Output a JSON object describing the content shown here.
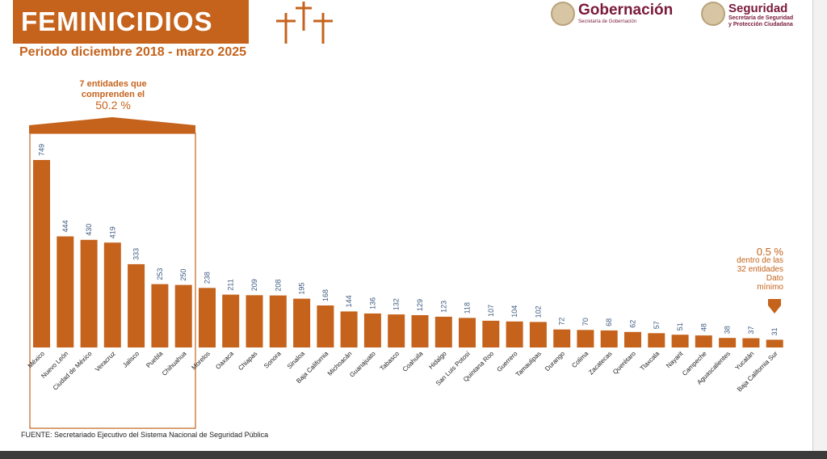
{
  "header": {
    "title": "FEMINICIDIOS",
    "subtitle": "Periodo diciembre 2018 - marzo 2025"
  },
  "logos": {
    "gobernacion": {
      "name": "Gobernación",
      "sub": "Secretaría de Gobernación"
    },
    "seguridad": {
      "name": "Seguridad",
      "sub1": "Secretaría de Seguridad",
      "sub2": "y Protección Ciudadana"
    }
  },
  "annotations": {
    "left": {
      "line1": "7 entidades que",
      "line2": "comprenden el",
      "pct": "50.2 %"
    },
    "right": {
      "pct": "0.5 %",
      "line1": "dentro de las",
      "line2": "32 entidades",
      "line3": "Dato",
      "line4": "mínimo"
    }
  },
  "source": "FUENTE: Secretariado Ejecutivo del Sistema Nacional de Seguridad Pública",
  "colors": {
    "bar": "#c5631c",
    "value": "#3d5a80",
    "brand": "#7a1a3c"
  },
  "chart_data": {
    "type": "bar",
    "title": "FEMINICIDIOS",
    "subtitle": "Periodo diciembre 2018 - marzo 2025",
    "categories": [
      "México",
      "Nuevo León",
      "Ciudad de México",
      "Veracruz",
      "Jalisco",
      "Puebla",
      "Chihuahua",
      "Morelos",
      "Oaxaca",
      "Chiapas",
      "Sonora",
      "Sinaloa",
      "Baja California",
      "Michoacán",
      "Guanajuato",
      "Tabasco",
      "Coahuila",
      "Hidalgo",
      "San Luis Potosí",
      "Quintana Roo",
      "Guerrero",
      "Tamaulipas",
      "Durango",
      "Colima",
      "Zacatecas",
      "Querétaro",
      "Tlaxcala",
      "Nayarit",
      "Campeche",
      "Aguascalientes",
      "Yucatán",
      "Baja California Sur"
    ],
    "values": [
      749,
      444,
      430,
      419,
      333,
      253,
      250,
      238,
      211,
      209,
      208,
      195,
      168,
      144,
      136,
      132,
      129,
      123,
      118,
      107,
      104,
      102,
      72,
      70,
      68,
      62,
      57,
      51,
      48,
      38,
      37,
      31
    ],
    "ylim": [
      0,
      749
    ],
    "xlabel": "",
    "ylabel": "",
    "grid": false
  }
}
